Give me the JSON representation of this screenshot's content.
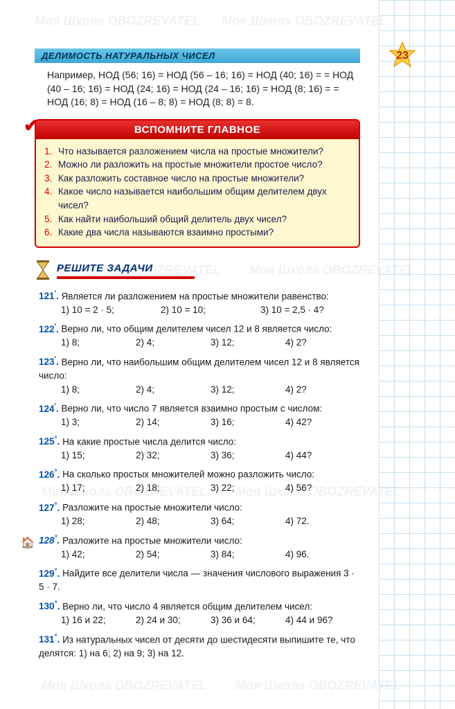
{
  "header": "ДЕЛИМОСТЬ НАТУРАЛЬНЫХ ЧИСЕЛ",
  "page_number": "23",
  "intro": "Например, НОД (56; 16) = НОД (56 – 16; 16) = НОД (40; 16) = = НОД (40 – 16; 16) = НОД (24; 16) = НОД (24 – 16; 16) = НОД (8; 16) = = НОД (16; 8) = НОД (16 – 8; 8) = НОД (8; 8) = 8.",
  "recall": {
    "title": "ВСПОМНИТЕ ГЛАВНОЕ",
    "items": [
      "Что называется разложением числа на простые множители?",
      "Можно ли разложить на простые множители простое число?",
      "Как разложить составное число на простые множители?",
      "Какое число называется наибольшим общим делителем двух чисел?",
      "Как найти наибольший общий делитель двух чисел?",
      "Какие два числа называются взаимно простыми?"
    ]
  },
  "section_title": "РЕШИТЕ ЗАДАЧИ",
  "problems": [
    {
      "num": "121",
      "sup": "′",
      "text": "Является ли разложением на простые множители равенство:",
      "opts": [
        "1) 10 = 2 · 5;",
        "2) 10 = 10;",
        "3) 10 = 2,5 · 4?"
      ]
    },
    {
      "num": "122",
      "sup": "′",
      "text": "Верно ли, что общим делителем чисел 12 и 8 является число:",
      "opts": [
        "1) 8;",
        "2) 4;",
        "3) 12;",
        "4) 2?"
      ]
    },
    {
      "num": "123",
      "sup": "′",
      "text": "Верно ли, что наибольшим общим делителем чисел 12 и 8 является число:",
      "opts": [
        "1) 8;",
        "2) 4;",
        "3) 12;",
        "4) 2?"
      ]
    },
    {
      "num": "124",
      "sup": "′",
      "text": "Верно ли, что число 7 является взаимно простым с числом:",
      "opts": [
        "1) 3;",
        "2) 14;",
        "3) 16;",
        "4) 42?"
      ]
    },
    {
      "num": "125",
      "sup": "°",
      "text": "На какие простые числа делится число:",
      "opts": [
        "1) 15;",
        "2) 32;",
        "3) 36;",
        "4) 44?"
      ]
    },
    {
      "num": "126",
      "sup": "°",
      "text": "На сколько простых множителей можно разложить число:",
      "opts": [
        "1) 17;",
        "2) 18;",
        "3) 22;",
        "4) 56?"
      ]
    },
    {
      "num": "127",
      "sup": "°",
      "text": "Разложите на простые множители число:",
      "opts": [
        "1) 28;",
        "2) 48;",
        "3) 64;",
        "4) 72."
      ]
    },
    {
      "num": "128",
      "sup": "°",
      "italic": true,
      "home": true,
      "text": "Разложите на простые множители число:",
      "opts": [
        "1) 42;",
        "2) 54;",
        "3) 84;",
        "4) 96."
      ]
    },
    {
      "num": "129",
      "sup": "°",
      "text": "Найдите все делители числа — значения числового выражения 3 · 5 · 7.",
      "opts": []
    },
    {
      "num": "130",
      "sup": "°",
      "text": "Верно ли, что число 4 является общим делителем чисел:",
      "opts": [
        "1) 16 и 22;",
        "2) 24 и 30;",
        "3) 36 и 64;",
        "4) 44 и 96?"
      ]
    },
    {
      "num": "131",
      "sup": "°",
      "text": "Из натуральных чисел от десяти до шестидесяти выпишите те, что делятся: 1) на 6; 2) на 9; 3) на 12.",
      "opts": []
    }
  ],
  "colors": {
    "header_bar": "#3da8d4",
    "accent_red": "#d40000",
    "problem_num": "#0050b0",
    "recall_bg": "#fff7d0",
    "star_fill": "#ffd040"
  },
  "watermark_text": "Моя Школа OBOZREVATEL"
}
